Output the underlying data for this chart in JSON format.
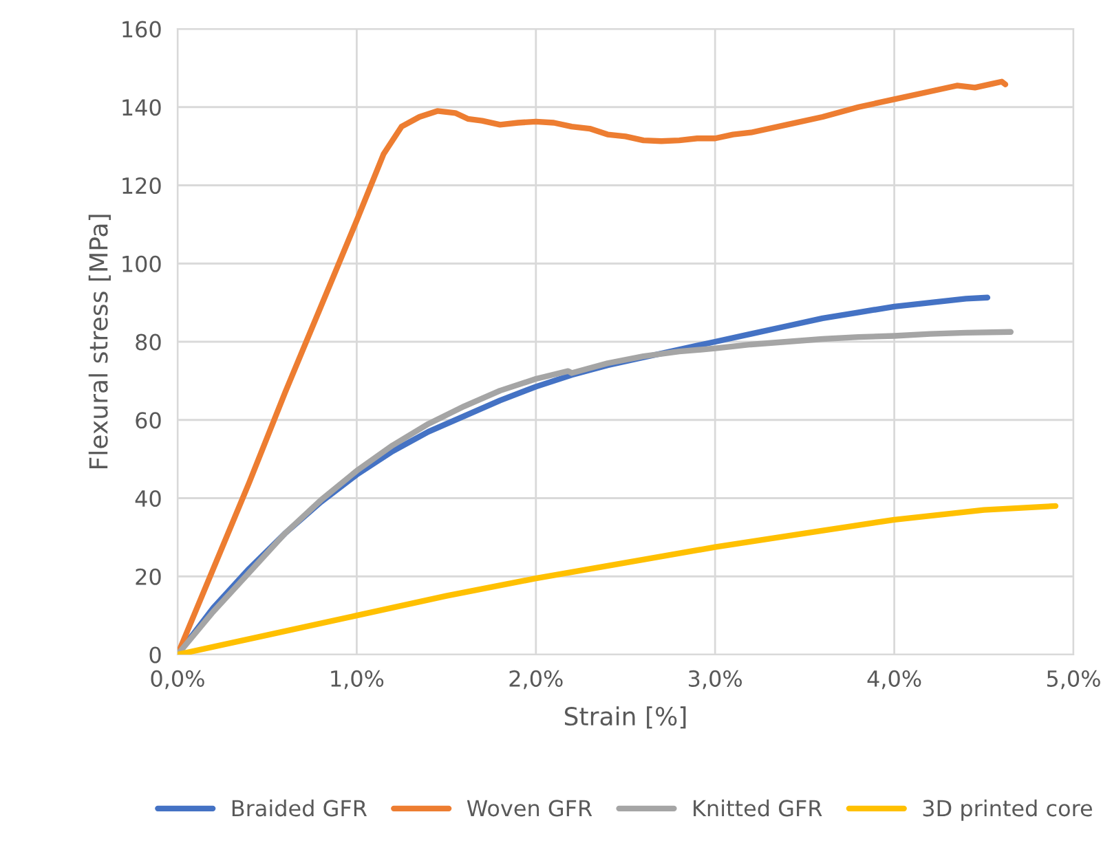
{
  "chart_data": {
    "type": "line",
    "xlabel": "Strain [%]",
    "ylabel": "Flexural stress [MPa]",
    "xlim": [
      0,
      5
    ],
    "xticks": [
      {
        "value": 0,
        "label": "0,0%"
      },
      {
        "value": 1,
        "label": "1,0%"
      },
      {
        "value": 2,
        "label": "2,0%"
      },
      {
        "value": 3,
        "label": "3,0%"
      },
      {
        "value": 4,
        "label": "4,0%"
      },
      {
        "value": 5,
        "label": "5,0%"
      }
    ],
    "ylim": [
      0,
      160
    ],
    "yticks": [
      0,
      20,
      40,
      60,
      80,
      100,
      120,
      140,
      160
    ],
    "grid": true,
    "legend": "bottom",
    "marker": "none",
    "line_style": "solid",
    "series": [
      {
        "name": "Braided GFR",
        "color": "#4472c4",
        "x": [
          0,
          0.2,
          0.4,
          0.6,
          0.8,
          1.0,
          1.2,
          1.4,
          1.6,
          1.8,
          2.0,
          2.2,
          2.4,
          2.6,
          2.8,
          3.0,
          3.2,
          3.4,
          3.6,
          3.8,
          4.0,
          4.2,
          4.4,
          4.52
        ],
        "values": [
          0,
          12,
          22,
          31,
          39,
          46,
          52,
          57,
          61,
          65,
          68.5,
          71.5,
          74,
          76,
          78,
          80,
          82,
          84,
          86,
          87.5,
          89,
          90,
          91,
          91.3
        ]
      },
      {
        "name": "Woven GFR",
        "color": "#ed7d31",
        "x": [
          0,
          0.2,
          0.4,
          0.6,
          0.8,
          1.0,
          1.15,
          1.25,
          1.35,
          1.45,
          1.55,
          1.62,
          1.7,
          1.8,
          1.9,
          2.0,
          2.1,
          2.2,
          2.3,
          2.4,
          2.5,
          2.6,
          2.7,
          2.8,
          2.9,
          3.0,
          3.1,
          3.2,
          3.4,
          3.6,
          3.8,
          4.0,
          4.2,
          4.35,
          4.45,
          4.55,
          4.6,
          4.62
        ],
        "values": [
          0,
          22,
          44,
          67,
          89,
          111,
          128,
          135,
          137.5,
          139,
          138.5,
          137,
          136.5,
          135.5,
          136,
          136.3,
          136,
          135,
          134.5,
          133,
          132.5,
          131.5,
          131.3,
          131.5,
          132,
          132,
          133,
          133.5,
          135.5,
          137.5,
          140,
          142,
          144,
          145.5,
          145,
          146,
          146.5,
          145.8
        ]
      },
      {
        "name": "Knitted GFR",
        "color": "#a5a5a5",
        "x": [
          0,
          0.2,
          0.4,
          0.6,
          0.8,
          1.0,
          1.2,
          1.4,
          1.6,
          1.8,
          2.0,
          2.18,
          2.2,
          2.4,
          2.6,
          2.8,
          3.0,
          3.2,
          3.4,
          3.6,
          3.8,
          4.0,
          4.2,
          4.4,
          4.65
        ],
        "values": [
          0,
          11,
          21,
          31,
          39.5,
          47,
          53.5,
          59,
          63.5,
          67.5,
          70.5,
          72.5,
          72,
          74.5,
          76.3,
          77.5,
          78.3,
          79.3,
          80,
          80.7,
          81.2,
          81.5,
          82,
          82.3,
          82.5
        ]
      },
      {
        "name": "3D printed core",
        "color": "#ffc000",
        "x": [
          0,
          0.5,
          1.0,
          1.5,
          2.0,
          2.5,
          3.0,
          3.5,
          4.0,
          4.5,
          4.9
        ],
        "values": [
          0,
          5,
          10,
          15,
          19.5,
          23.5,
          27.5,
          31,
          34.5,
          37,
          38
        ]
      }
    ]
  }
}
